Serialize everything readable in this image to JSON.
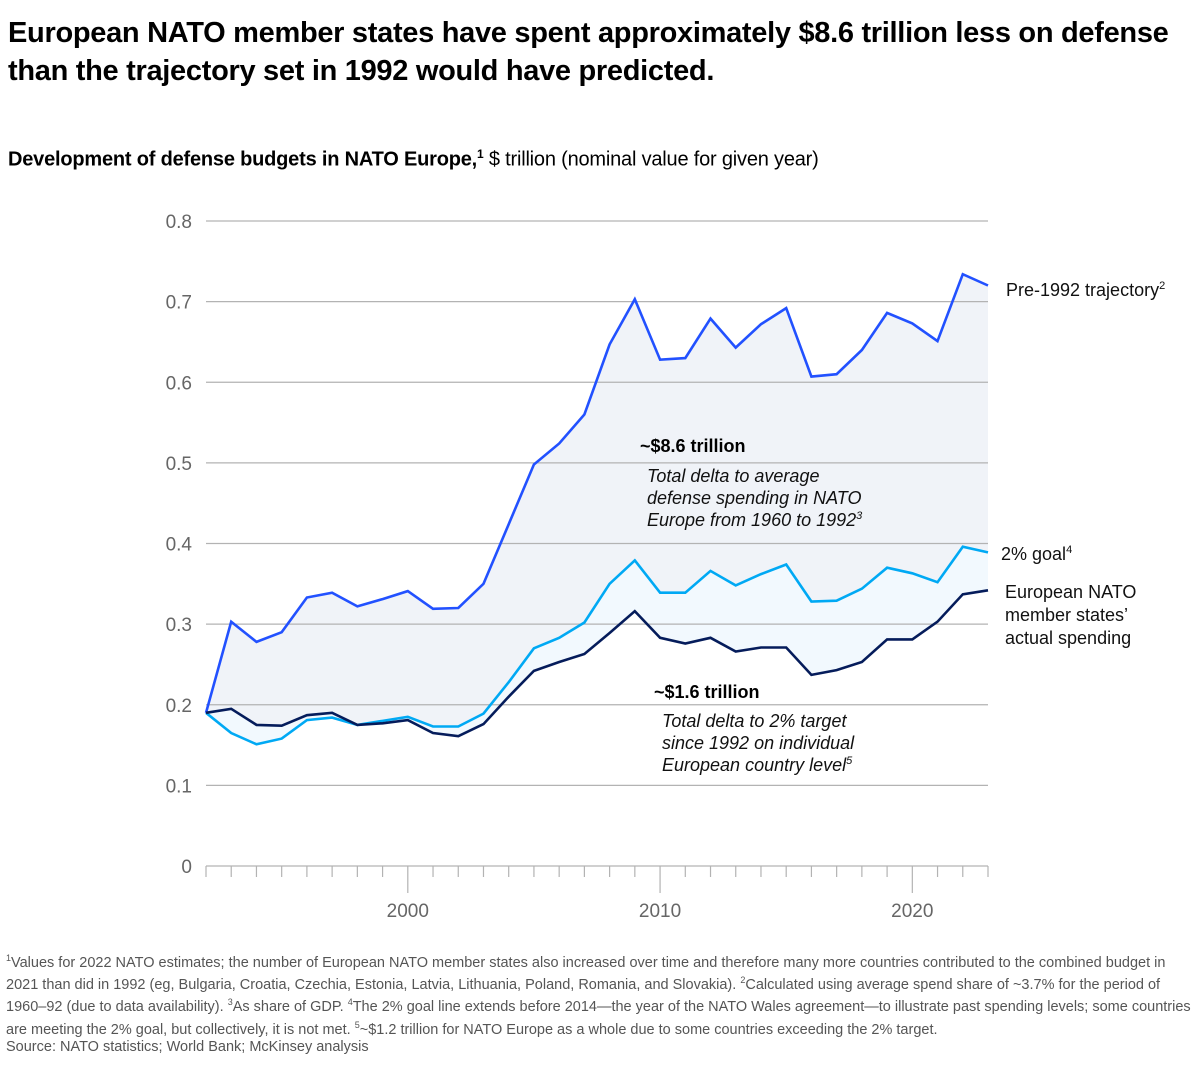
{
  "headline": "European NATO member states have spent approximately $8.6 trillion less on defense than the trajectory set in 1992 would have predicted.",
  "subtitle": {
    "bold": "Development of defense budgets in NATO Europe,",
    "sup": "1",
    "rest": " $ trillion (nominal value for given year)"
  },
  "colors": {
    "trajectory": "#2251FF",
    "goal": "#00A9F4",
    "actual": "#051C5B",
    "upper_fill": "#F0F3F8",
    "lower_fill": "#F2F9FE",
    "grid": "#B3B3B3"
  },
  "chart_data": {
    "type": "line",
    "title": "Development of defense budgets in NATO Europe",
    "ylabel": "$ trillion (nominal value for given year)",
    "xlabel": "",
    "x": [
      1992,
      1993,
      1994,
      1995,
      1996,
      1997,
      1998,
      1999,
      2000,
      2001,
      2002,
      2003,
      2004,
      2005,
      2006,
      2007,
      2008,
      2009,
      2010,
      2011,
      2012,
      2013,
      2014,
      2015,
      2016,
      2017,
      2018,
      2019,
      2020,
      2021,
      2022,
      2023
    ],
    "xlim": [
      1992,
      2023
    ],
    "x_tick_labels": [
      2000,
      2010,
      2020
    ],
    "ylim": [
      0,
      0.8
    ],
    "y_ticks": [
      0,
      0.1,
      0.2,
      0.3,
      0.4,
      0.5,
      0.6,
      0.7,
      0.8
    ],
    "y_tick_labels": [
      "0",
      "0.1",
      "0.2",
      "0.3",
      "0.4",
      "0.5",
      "0.6",
      "0.7",
      "0.8"
    ],
    "grid": true,
    "series": [
      {
        "name": "Pre-1992 trajectory",
        "label": "Pre-1992 trajectory",
        "label_sup": "2",
        "values": [
          0.19,
          0.303,
          0.278,
          0.29,
          0.333,
          0.339,
          0.322,
          0.331,
          0.341,
          0.319,
          0.32,
          0.35,
          0.424,
          0.498,
          0.524,
          0.56,
          0.647,
          0.703,
          0.628,
          0.63,
          0.679,
          0.643,
          0.672,
          0.692,
          0.607,
          0.61,
          0.64,
          0.686,
          0.673,
          0.651,
          0.734,
          0.72
        ]
      },
      {
        "name": "2% goal",
        "label": "2% goal",
        "label_sup": "4",
        "values": [
          0.19,
          0.165,
          0.151,
          0.158,
          0.181,
          0.184,
          0.175,
          0.18,
          0.185,
          0.173,
          0.173,
          0.189,
          0.228,
          0.27,
          0.283,
          0.302,
          0.35,
          0.379,
          0.339,
          0.339,
          0.366,
          0.348,
          0.362,
          0.374,
          0.328,
          0.329,
          0.344,
          0.37,
          0.363,
          0.352,
          0.396,
          0.389
        ]
      },
      {
        "name": "European NATO member states' actual spending",
        "label_lines": [
          "European NATO",
          "member states’",
          "actual spending"
        ],
        "values": [
          0.19,
          0.195,
          0.175,
          0.174,
          0.187,
          0.19,
          0.175,
          0.177,
          0.181,
          0.165,
          0.161,
          0.176,
          0.21,
          0.242,
          0.253,
          0.263,
          0.289,
          0.316,
          0.283,
          0.276,
          0.283,
          0.266,
          0.271,
          0.271,
          0.237,
          0.243,
          0.253,
          0.281,
          0.281,
          0.303,
          0.337,
          0.342
        ]
      }
    ],
    "annotations": [
      {
        "title": "~$8.6 trillion",
        "lines": [
          "Total delta to average",
          "defense spending in NATO",
          "Europe from 1960 to 1992"
        ],
        "sup": "3"
      },
      {
        "title": "~$1.6 trillion",
        "lines": [
          "Total delta to 2% target",
          "since 1992 on individual",
          "European country level"
        ],
        "sup": "5"
      }
    ]
  },
  "footnotes": [
    {
      "sup": "1",
      "text": "Values for 2022 NATO estimates; the number of European NATO member states also increased over time and therefore many more countries contributed to the combined budget in 2021 than did in 1992 (eg, Bulgaria, Croatia, Czechia, Estonia, Latvia, Lithuania, Poland, Romania, and Slovakia). "
    },
    {
      "sup": "2",
      "text": "Calculated using average spend share of ~3.7% for the period of 1960–92 (due to data availability). "
    },
    {
      "sup": "3",
      "text": "As share of GDP. "
    },
    {
      "sup": "4",
      "text": "The 2% goal line extends before 2014—the year of the NATO Wales agreement—to illustrate past spending levels; some countries are meeting the 2% goal, but collectively, it is not met. "
    },
    {
      "sup": "5",
      "text": "~$1.2 trillion for NATO Europe as a whole due to some countries exceeding the 2% target."
    }
  ],
  "source": "Source: NATO statistics; World Bank; McKinsey analysis"
}
